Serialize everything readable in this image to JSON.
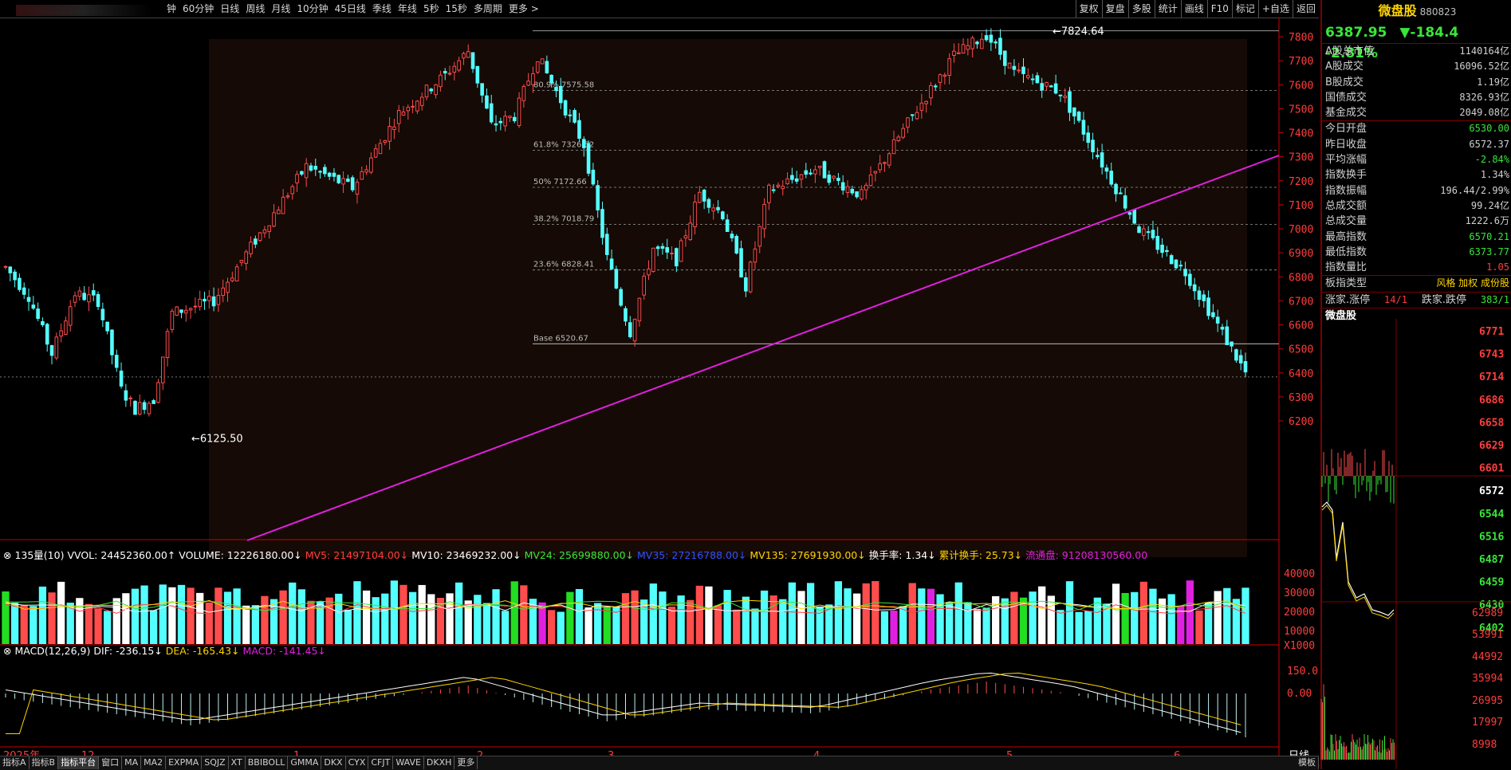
{
  "toolbar": {
    "periods": [
      "钟",
      "60分钟",
      "日线",
      "周线",
      "月线",
      "10分钟",
      "45日线",
      "季线",
      "年线",
      "5秒",
      "15秒",
      "多周期",
      "更多 >"
    ],
    "right_buttons": [
      "复权",
      "复盘",
      "多股",
      "统计",
      "画线",
      "F10",
      "标记",
      "+自选",
      "返回"
    ]
  },
  "chart": {
    "high_label": "7824.64",
    "low_label": "6125.50",
    "fib": [
      {
        "label": "80.9% 7575.58",
        "value": 7575.58
      },
      {
        "label": "61.8% 7326.52",
        "value": 7326.52
      },
      {
        "label": "50% 7172.66",
        "value": 7172.66
      },
      {
        "label": "38.2% 7018.79",
        "value": 7018.79
      },
      {
        "label": "23.6% 6828.41",
        "value": 6828.41
      },
      {
        "label": "Base 6520.67",
        "value": 6520.67
      }
    ],
    "price_ticks": [
      "7800",
      "7700",
      "7600",
      "7500",
      "7400",
      "7300",
      "7200",
      "7100",
      "7000",
      "6900",
      "6800",
      "6700",
      "6600",
      "6500",
      "6400",
      "6300",
      "6200"
    ],
    "colors": {
      "up": "#ff4c4c",
      "down": "#54ffff",
      "trend": "#e020e0",
      "axis": "#cc0000"
    }
  },
  "volume": {
    "indicator": "135量(10)",
    "items": [
      {
        "text": "VVOL: 24452360.00↑",
        "color": "#ffffff"
      },
      {
        "text": "VOLUME: 12226180.00↓",
        "color": "#ffffff"
      },
      {
        "text": "MV5: 21497104.00↓",
        "color": "#ff3d3d"
      },
      {
        "text": "MV10: 23469232.00↓",
        "color": "#ffffff"
      },
      {
        "text": "MV24: 25699880.00↓",
        "color": "#39e639"
      },
      {
        "text": "MV35: 27216788.00↓",
        "color": "#3050ff"
      },
      {
        "text": "MV135: 27691930.00↓",
        "color": "#ffd400"
      },
      {
        "text": "换手率: 1.34↓",
        "color": "#ffffff"
      },
      {
        "text": "累计换手: 25.73↓",
        "color": "#ffd400"
      },
      {
        "text": "流通盘: 91208130560.00",
        "color": "#e020e0"
      }
    ],
    "ticks": [
      "40000",
      "30000",
      "20000",
      "10000",
      "X1000"
    ]
  },
  "macd": {
    "indicator": "MACD(12,26,9)",
    "dif": "DIF: -236.15↓",
    "dea": "DEA: -165.43↓",
    "macd": "MACD: -141.45↓",
    "ticks": [
      "150.0",
      "0.00"
    ]
  },
  "date_axis": {
    "labels": [
      "2025年",
      "12",
      "1",
      "2",
      "3",
      "4",
      "5",
      "6"
    ],
    "period": "日线"
  },
  "panel": {
    "name": "微盘股",
    "code": "880823",
    "price": "6387.95",
    "change": "▼-184.4",
    "pct": "-2.81%",
    "rows": [
      {
        "label": "A股总市值",
        "value": "1140164亿",
        "cls": ""
      },
      {
        "label": "A股成交",
        "value": "16096.52亿",
        "cls": ""
      },
      {
        "label": "B股成交",
        "value": "1.19亿",
        "cls": ""
      },
      {
        "label": "国债成交",
        "value": "8326.93亿",
        "cls": ""
      },
      {
        "label": "基金成交",
        "value": "2049.08亿",
        "cls": ""
      },
      {
        "label": "今日开盘",
        "value": "6530.00",
        "cls": "g"
      },
      {
        "label": "昨日收盘",
        "value": "6572.37",
        "cls": ""
      },
      {
        "label": "平均涨幅",
        "value": "-2.84%",
        "cls": "g"
      },
      {
        "label": "指数换手",
        "value": "1.34%",
        "cls": ""
      },
      {
        "label": "指数振幅",
        "value": "196.44/2.99%",
        "cls": ""
      },
      {
        "label": "总成交额",
        "value": "99.24亿",
        "cls": ""
      },
      {
        "label": "总成交量",
        "value": "1222.6万",
        "cls": ""
      },
      {
        "label": "最高指数",
        "value": "6570.21",
        "cls": "g"
      },
      {
        "label": "最低指数",
        "value": "6373.77",
        "cls": "g"
      },
      {
        "label": "指数量比",
        "value": "1.05",
        "cls": "r"
      }
    ],
    "type_label": "板指类型",
    "type_value": "风格 加权 成份股",
    "updown_label1": "涨家.涨停",
    "updown_val1": "14/1",
    "updown_label2": "跌家.跌停",
    "updown_val2": "383/1",
    "mini_title": "微盘股",
    "mini_price_ticks": [
      "6771",
      "6743",
      "6714",
      "6686",
      "6658",
      "6629",
      "6601",
      "6572",
      "6544",
      "6516",
      "6487",
      "6459",
      "6430",
      "6402"
    ],
    "mini_vol_ticks": [
      "62989",
      "53991",
      "44992",
      "35994",
      "26995",
      "17997",
      "8998"
    ]
  },
  "bottom_tabs": [
    "指标A",
    "指标B",
    "指标平台",
    "窗口",
    "MA",
    "MA2",
    "EXPMA",
    "SQJZ",
    "XT",
    "BBIBOLL",
    "GMMA",
    "DKX",
    "CYX",
    "CFJT",
    "WAVE",
    "DKXH",
    "更多"
  ],
  "bottom_active": "指标平台",
  "bottom_right": [
    "模板"
  ]
}
